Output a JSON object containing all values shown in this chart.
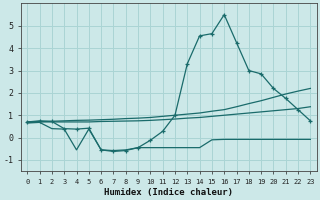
{
  "bg_color": "#cce8e8",
  "line_color": "#1a6b6b",
  "grid_color": "#aad4d4",
  "xlabel": "Humidex (Indice chaleur)",
  "ylim": [
    -1.5,
    6.0
  ],
  "xlim": [
    -0.5,
    23.5
  ],
  "yticks": [
    -1,
    0,
    1,
    2,
    3,
    4,
    5
  ],
  "xticks": [
    0,
    1,
    2,
    3,
    4,
    5,
    6,
    7,
    8,
    9,
    10,
    11,
    12,
    13,
    14,
    15,
    16,
    17,
    18,
    19,
    20,
    21,
    22,
    23
  ],
  "series1_x": [
    0,
    1,
    2,
    3,
    4,
    5,
    6,
    7,
    8,
    9,
    10,
    11,
    12,
    13,
    14,
    15,
    16,
    17,
    18,
    19,
    20,
    21,
    22,
    23
  ],
  "series1_y": [
    0.7,
    0.75,
    0.72,
    0.4,
    0.38,
    0.42,
    -0.55,
    -0.62,
    -0.58,
    -0.45,
    -0.12,
    0.28,
    1.0,
    3.3,
    4.55,
    4.65,
    5.5,
    4.25,
    3.0,
    2.85,
    2.2,
    1.75,
    1.25,
    0.75
  ],
  "series2_x": [
    0,
    1,
    2,
    3,
    4,
    5,
    6,
    7,
    8,
    9,
    10,
    11,
    12,
    13,
    14,
    15,
    16,
    17,
    18,
    19,
    20,
    21,
    22,
    23
  ],
  "series2_y": [
    0.7,
    0.72,
    0.73,
    0.75,
    0.77,
    0.78,
    0.8,
    0.82,
    0.85,
    0.87,
    0.9,
    0.95,
    1.0,
    1.05,
    1.1,
    1.18,
    1.25,
    1.38,
    1.52,
    1.65,
    1.8,
    1.95,
    2.08,
    2.2
  ],
  "series3_x": [
    0,
    1,
    2,
    3,
    4,
    5,
    6,
    7,
    8,
    9,
    10,
    11,
    12,
    13,
    14,
    15,
    16,
    17,
    18,
    19,
    20,
    21,
    22,
    23
  ],
  "series3_y": [
    0.68,
    0.7,
    0.7,
    0.7,
    0.7,
    0.7,
    0.72,
    0.73,
    0.74,
    0.75,
    0.77,
    0.8,
    0.83,
    0.87,
    0.9,
    0.95,
    1.0,
    1.05,
    1.1,
    1.15,
    1.2,
    1.25,
    1.3,
    1.38
  ],
  "series4_x": [
    0,
    1,
    2,
    3,
    4,
    5,
    6,
    7,
    8,
    9,
    10,
    11,
    12,
    13,
    14,
    15,
    16,
    17,
    18,
    19,
    20,
    21,
    22,
    23
  ],
  "series4_y": [
    0.65,
    0.68,
    0.4,
    0.38,
    -0.55,
    0.38,
    -0.55,
    -0.58,
    -0.55,
    -0.45,
    -0.45,
    -0.45,
    -0.45,
    -0.45,
    -0.45,
    -0.1,
    -0.08,
    -0.08,
    -0.08,
    -0.08,
    -0.08,
    -0.08,
    -0.08,
    -0.08
  ]
}
